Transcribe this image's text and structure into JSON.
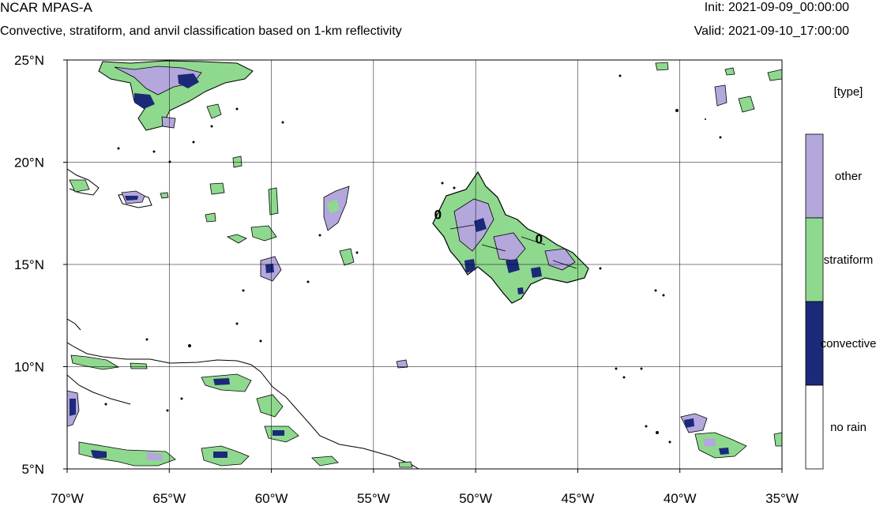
{
  "header": {
    "model": "NCAR MPAS-A",
    "description": "Convective, stratiform, and anvil classification based on 1-km reflectivity",
    "init": "Init: 2021-09-09_00:00:00",
    "valid": "Valid: 2021-09-10_17:00:00"
  },
  "map": {
    "lon_range": [
      -70,
      -35
    ],
    "lat_range": [
      5,
      25
    ],
    "x_ticks": [
      {
        "lon": -70,
        "label": "70°W"
      },
      {
        "lon": -65,
        "label": "65°W"
      },
      {
        "lon": -60,
        "label": "60°W"
      },
      {
        "lon": -55,
        "label": "55°W"
      },
      {
        "lon": -50,
        "label": "50°W"
      },
      {
        "lon": -45,
        "label": "45°W"
      },
      {
        "lon": -40,
        "label": "40°W"
      },
      {
        "lon": -35,
        "label": "35°W"
      }
    ],
    "y_ticks": [
      {
        "lat": 25,
        "label": "25°N"
      },
      {
        "lat": 20,
        "label": "20°N"
      },
      {
        "lat": 15,
        "label": "15°N"
      },
      {
        "lat": 10,
        "label": "10°N"
      },
      {
        "lat": 5,
        "label": "5°N"
      }
    ],
    "grid_lines": true
  },
  "legend": {
    "title": "[type]",
    "categories": [
      {
        "label": "other",
        "color": "#b4a7dc"
      },
      {
        "label": "stratiform",
        "color": "#8fd98f"
      },
      {
        "label": "convective",
        "color": "#1b2a78"
      },
      {
        "label": "no rain",
        "color": "#ffffff"
      }
    ]
  },
  "annotations": [
    {
      "text": "0",
      "lon": -51.85,
      "lat": 17.5
    },
    {
      "text": "0",
      "lon": -46.9,
      "lat": 16.3
    }
  ]
}
